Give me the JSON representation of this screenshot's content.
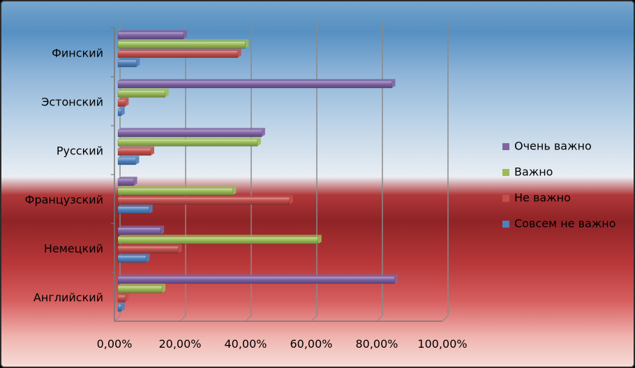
{
  "chart_data": {
    "type": "bar",
    "orientation": "horizontal",
    "title": "",
    "xlabel": "",
    "ylabel": "",
    "categories": [
      "Финский",
      "Эстонский",
      "Русский",
      "Французский",
      "Немецкий",
      "Английский"
    ],
    "series": [
      {
        "name": "Очень важно",
        "color": "#8064a2",
        "values": [
          20.0,
          83.5,
          43.8,
          4.8,
          13.0,
          84.3
        ]
      },
      {
        "name": "Важно",
        "color": "#9bbb59",
        "values": [
          38.8,
          14.4,
          42.5,
          35.0,
          61.0,
          13.4
        ]
      },
      {
        "name": "Не важно",
        "color": "#c0504d",
        "values": [
          36.5,
          2.2,
          10.0,
          52.3,
          18.4,
          2.2
        ]
      },
      {
        "name": "Совсем не важно",
        "color": "#4f81bd",
        "values": [
          5.6,
          1.0,
          5.4,
          9.5,
          8.6,
          1.0
        ]
      }
    ],
    "xlim": [
      0,
      100
    ],
    "x_ticks": [
      "0,00%",
      "20,00%",
      "40,00%",
      "60,00%",
      "80,00%",
      "100,00%"
    ],
    "grid": true,
    "legend_position": "right"
  }
}
